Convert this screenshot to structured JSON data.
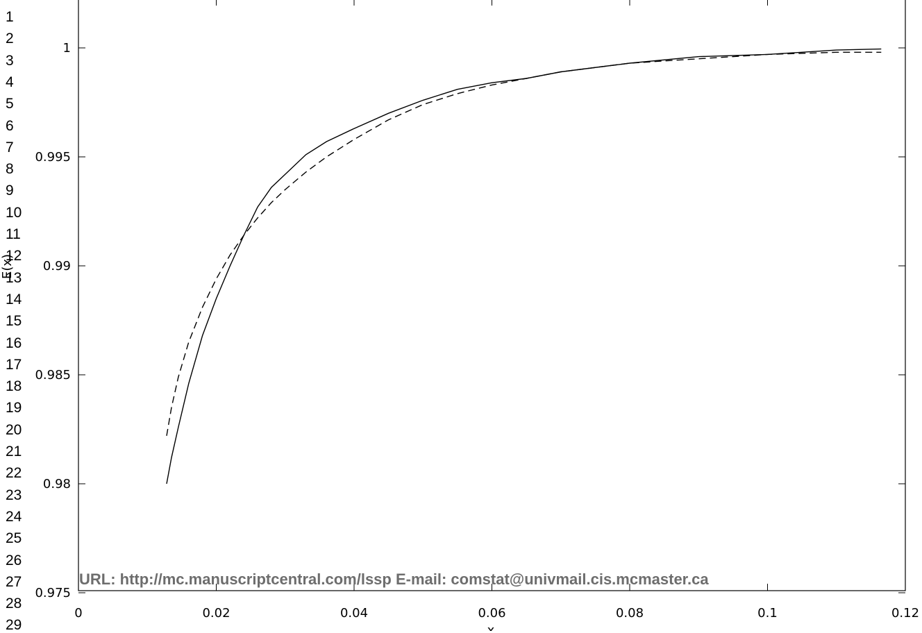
{
  "line_numbers": [
    "1",
    "2",
    "3",
    "4",
    "5",
    "6",
    "7",
    "8",
    "9",
    "10",
    "11",
    "12",
    "13",
    "14",
    "15",
    "16",
    "17",
    "18",
    "19",
    "20",
    "21",
    "22",
    "23",
    "24",
    "25",
    "26",
    "27",
    "28",
    "29"
  ],
  "watermark": "URL: http://mc.manuscriptcentral.com/lssp E-mail:  comstat@univmail.cis.mcmaster.ca",
  "chart_data": {
    "type": "line",
    "xlabel": "x",
    "ylabel": "E(x)",
    "xlim": [
      0,
      0.12
    ],
    "ylim": [
      0.975,
      1.002
    ],
    "xticks": [
      {
        "value": 0,
        "label": "0"
      },
      {
        "value": 0.02,
        "label": "0.02"
      },
      {
        "value": 0.04,
        "label": "0.04"
      },
      {
        "value": 0.06,
        "label": "0.06"
      },
      {
        "value": 0.08,
        "label": "0.08"
      },
      {
        "value": 0.1,
        "label": "0.1"
      },
      {
        "value": 0.12,
        "label": "0.12"
      }
    ],
    "yticks": [
      {
        "value": 0.975,
        "label": "0.975"
      },
      {
        "value": 0.98,
        "label": "0.98"
      },
      {
        "value": 0.985,
        "label": "0.985"
      },
      {
        "value": 0.99,
        "label": "0.99"
      },
      {
        "value": 0.995,
        "label": "0.995"
      },
      {
        "value": 1.0,
        "label": "1"
      }
    ],
    "grid": false,
    "series": [
      {
        "style": "solid",
        "color": "#000000",
        "x": [
          0.0128,
          0.0135,
          0.0145,
          0.016,
          0.018,
          0.02,
          0.022,
          0.024,
          0.026,
          0.028,
          0.03,
          0.033,
          0.036,
          0.04,
          0.045,
          0.05,
          0.055,
          0.06,
          0.065,
          0.07,
          0.08,
          0.09,
          0.1,
          0.11,
          0.1165
        ],
        "y": [
          0.98,
          0.9812,
          0.9826,
          0.9846,
          0.9868,
          0.9885,
          0.99,
          0.9914,
          0.9927,
          0.9936,
          0.9942,
          0.9951,
          0.9957,
          0.9963,
          0.997,
          0.9976,
          0.9981,
          0.9984,
          0.9986,
          0.9989,
          0.9993,
          0.9996,
          0.9997,
          0.9999,
          0.99995
        ]
      },
      {
        "style": "dashed",
        "color": "#000000",
        "x": [
          0.0128,
          0.0135,
          0.0145,
          0.016,
          0.018,
          0.02,
          0.022,
          0.024,
          0.026,
          0.028,
          0.03,
          0.033,
          0.036,
          0.04,
          0.045,
          0.05,
          0.055,
          0.06,
          0.065,
          0.07,
          0.08,
          0.09,
          0.1,
          0.11,
          0.1165
        ],
        "y": [
          0.9822,
          0.9835,
          0.9849,
          0.9865,
          0.9881,
          0.9894,
          0.9905,
          0.9914,
          0.9922,
          0.9929,
          0.9935,
          0.9943,
          0.995,
          0.9958,
          0.9967,
          0.9974,
          0.9979,
          0.9983,
          0.9986,
          0.9989,
          0.9993,
          0.9995,
          0.9997,
          0.9998,
          0.9998
        ]
      }
    ]
  }
}
